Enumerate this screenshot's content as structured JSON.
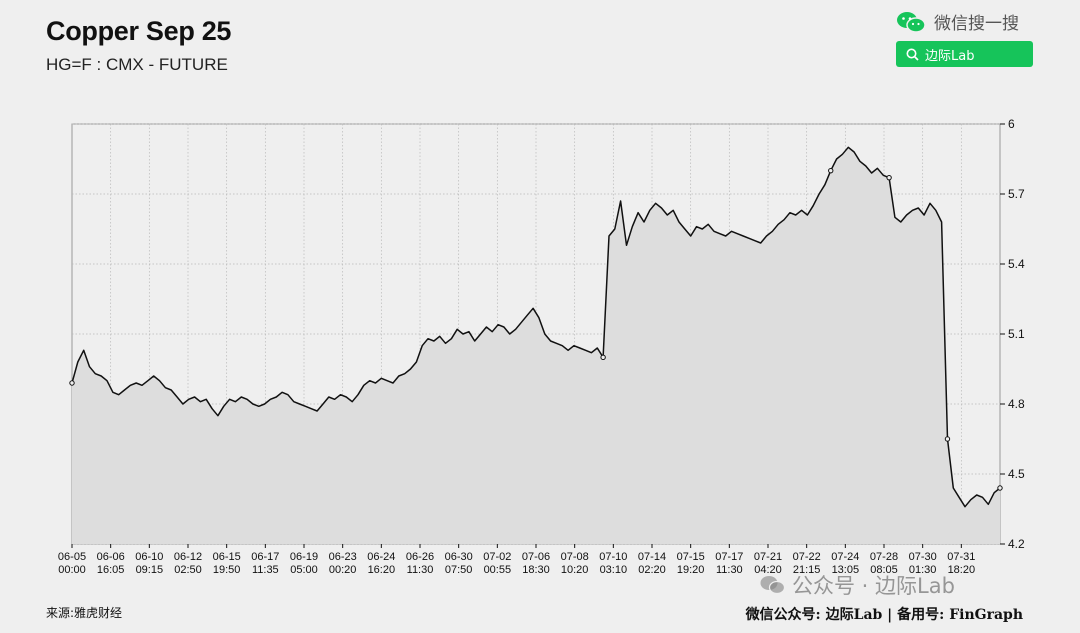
{
  "header": {
    "title": "Copper Sep 25",
    "subtitle": "HG=F : CMX - FUTURE"
  },
  "wechat": {
    "search_label": "微信搜一搜",
    "search_query": "边际Lab"
  },
  "footer": {
    "source": "来源:雅虎财经",
    "right_text": "微信公众号: 边际Lab | 备用号: FinGraph",
    "watermark": "公众号 · 边际Lab"
  },
  "colors": {
    "line": "#111111",
    "fill": "#dddddd",
    "grid": "#b5b5b5",
    "background": "#efefef",
    "search_green": "#16c45a"
  },
  "chart_data": {
    "type": "area",
    "title": "Copper Sep 25",
    "subtitle": "HG=F : CMX - FUTURE",
    "y_axis_position": "right",
    "ylim": [
      4.2,
      6.0
    ],
    "yticks": [
      "6",
      "5.7",
      "5.4",
      "5.1",
      "4.8",
      "4.5",
      "4.2"
    ],
    "grid": true,
    "x_ticks": [
      {
        "date": "06-05",
        "time": "00:00"
      },
      {
        "date": "06-06",
        "time": "16:05"
      },
      {
        "date": "06-10",
        "time": "09:15"
      },
      {
        "date": "06-12",
        "time": "02:50"
      },
      {
        "date": "06-15",
        "time": "19:50"
      },
      {
        "date": "06-17",
        "time": "11:35"
      },
      {
        "date": "06-19",
        "time": "05:00"
      },
      {
        "date": "06-23",
        "time": "00:20"
      },
      {
        "date": "06-24",
        "time": "16:20"
      },
      {
        "date": "06-26",
        "time": "11:30"
      },
      {
        "date": "06-30",
        "time": "07:50"
      },
      {
        "date": "07-02",
        "time": "00:55"
      },
      {
        "date": "07-06",
        "time": "18:30"
      },
      {
        "date": "07-08",
        "time": "10:20"
      },
      {
        "date": "07-10",
        "time": "03:10"
      },
      {
        "date": "07-14",
        "time": "02:20"
      },
      {
        "date": "07-15",
        "time": "19:20"
      },
      {
        "date": "07-17",
        "time": "11:30"
      },
      {
        "date": "07-21",
        "time": "04:20"
      },
      {
        "date": "07-22",
        "time": "21:15"
      },
      {
        "date": "07-24",
        "time": "13:05"
      },
      {
        "date": "07-28",
        "time": "08:05"
      },
      {
        "date": "07-30",
        "time": "01:30"
      },
      {
        "date": "07-31",
        "time": "18:20"
      }
    ],
    "series": [
      {
        "values": [
          4.89,
          4.98,
          5.03,
          4.96,
          4.93,
          4.92,
          4.9,
          4.85,
          4.84,
          4.86,
          4.88,
          4.89,
          4.88,
          4.9,
          4.92,
          4.9,
          4.87,
          4.86,
          4.83,
          4.8,
          4.82,
          4.83,
          4.81,
          4.82,
          4.78,
          4.75,
          4.79,
          4.82,
          4.81,
          4.83,
          4.82,
          4.8,
          4.79,
          4.8,
          4.82,
          4.83,
          4.85,
          4.84,
          4.81,
          4.8,
          4.79,
          4.78,
          4.77,
          4.8,
          4.83,
          4.82,
          4.84,
          4.83,
          4.81,
          4.84,
          4.88,
          4.9,
          4.89,
          4.91,
          4.9,
          4.89,
          4.92,
          4.93,
          4.95,
          4.98,
          5.05,
          5.08,
          5.07,
          5.09,
          5.06,
          5.08,
          5.12,
          5.1,
          5.11,
          5.07,
          5.1,
          5.13,
          5.11,
          5.14,
          5.13,
          5.1,
          5.12,
          5.15,
          5.18,
          5.21,
          5.17,
          5.1,
          5.07,
          5.06,
          5.05,
          5.03,
          5.05,
          5.04,
          5.03,
          5.02,
          5.04,
          5.0,
          5.52,
          5.55,
          5.67,
          5.48,
          5.56,
          5.62,
          5.58,
          5.63,
          5.66,
          5.64,
          5.61,
          5.63,
          5.58,
          5.55,
          5.52,
          5.56,
          5.55,
          5.57,
          5.54,
          5.53,
          5.52,
          5.54,
          5.53,
          5.52,
          5.51,
          5.5,
          5.49,
          5.52,
          5.54,
          5.57,
          5.59,
          5.62,
          5.61,
          5.63,
          5.61,
          5.65,
          5.7,
          5.74,
          5.8,
          5.85,
          5.87,
          5.9,
          5.88,
          5.84,
          5.82,
          5.79,
          5.81,
          5.78,
          5.77,
          5.6,
          5.58,
          5.61,
          5.63,
          5.64,
          5.61,
          5.66,
          5.63,
          5.58,
          4.65,
          4.44,
          4.4,
          4.36,
          4.39,
          4.41,
          4.4,
          4.37,
          4.42,
          4.44
        ]
      }
    ]
  }
}
